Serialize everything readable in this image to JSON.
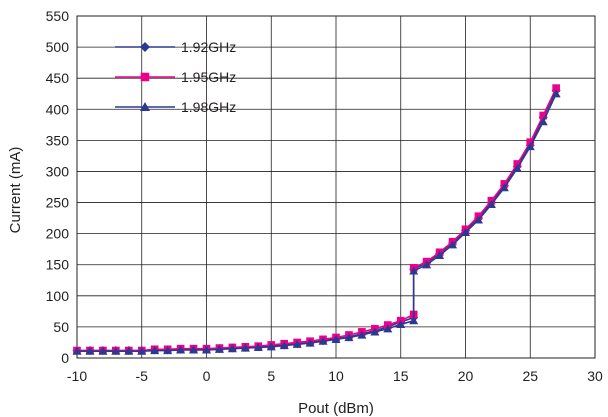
{
  "chart_data": {
    "type": "line",
    "title": "",
    "xlabel": "Pout (dBm)",
    "ylabel": "Current (mA)",
    "xlim": [
      -10,
      30
    ],
    "ylim": [
      0,
      550
    ],
    "xticks": [
      -10,
      -5,
      0,
      5,
      10,
      15,
      20,
      25,
      30
    ],
    "yticks": [
      0,
      50,
      100,
      150,
      200,
      250,
      300,
      350,
      400,
      450,
      500,
      550
    ],
    "grid": true,
    "legend_position": "top-left",
    "series": [
      {
        "name": "1.92GHz",
        "marker": "diamond",
        "line_color": "#2b3990",
        "marker_color": "#2b3990",
        "x": [
          -10,
          -9,
          -8,
          -7,
          -6,
          -5,
          -4,
          -3,
          -2,
          -1,
          0,
          1,
          2,
          3,
          4,
          5,
          6,
          7,
          8,
          9,
          10,
          11,
          12,
          13,
          14,
          15,
          16,
          16,
          17,
          18,
          19,
          20,
          21,
          22,
          23,
          24,
          25,
          26,
          27
        ],
        "y": [
          12,
          12,
          12,
          12,
          12,
          12,
          13,
          13,
          14,
          14,
          14,
          15,
          16,
          17,
          18,
          19,
          21,
          23,
          25,
          28,
          31,
          34,
          39,
          44,
          50,
          58,
          65,
          143,
          153,
          168,
          185,
          205,
          225,
          250,
          277,
          308,
          342,
          387,
          430
        ]
      },
      {
        "name": "1.95GHz",
        "marker": "square",
        "line_color": "#ec008c",
        "marker_color": "#ec008c",
        "x": [
          -10,
          -9,
          -8,
          -7,
          -6,
          -5,
          -4,
          -3,
          -2,
          -1,
          0,
          1,
          2,
          3,
          4,
          5,
          6,
          7,
          8,
          9,
          10,
          11,
          12,
          13,
          14,
          15,
          16,
          16,
          17,
          18,
          19,
          20,
          21,
          22,
          23,
          24,
          25,
          26,
          27
        ],
        "y": [
          12,
          12,
          12,
          12,
          12,
          12,
          14,
          14,
          15,
          15,
          15,
          16,
          17,
          18,
          19,
          21,
          23,
          25,
          27,
          30,
          33,
          37,
          42,
          47,
          53,
          60,
          70,
          145,
          155,
          170,
          187,
          207,
          228,
          253,
          280,
          312,
          347,
          390,
          434
        ]
      },
      {
        "name": "1.98GHz",
        "marker": "triangle",
        "line_color": "#2b3990",
        "marker_color": "#2b3990",
        "x": [
          -10,
          -9,
          -8,
          -7,
          -6,
          -5,
          -4,
          -3,
          -2,
          -1,
          0,
          1,
          2,
          3,
          4,
          5,
          6,
          7,
          8,
          9,
          10,
          11,
          12,
          13,
          14,
          15,
          16,
          16,
          17,
          18,
          19,
          20,
          21,
          22,
          23,
          24,
          25,
          26,
          27
        ],
        "y": [
          11,
          11,
          11,
          11,
          11,
          11,
          12,
          12,
          13,
          13,
          13,
          14,
          15,
          16,
          17,
          18,
          20,
          22,
          24,
          27,
          30,
          33,
          37,
          42,
          47,
          54,
          60,
          140,
          150,
          165,
          182,
          202,
          222,
          247,
          274,
          305,
          340,
          380,
          425
        ]
      }
    ]
  }
}
